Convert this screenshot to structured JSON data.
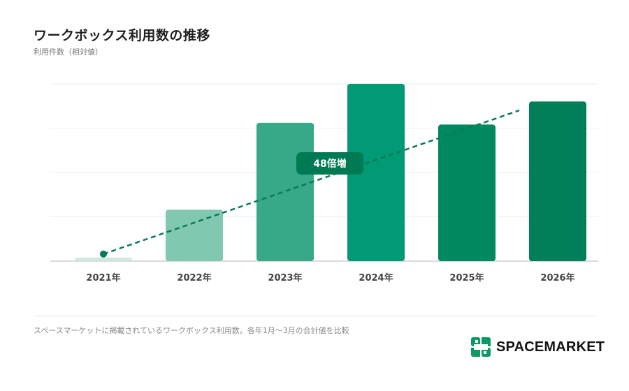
{
  "title": "ワークボックス利用数の推移",
  "subtitle": "利用件数（相対値）",
  "chart_data": {
    "type": "bar",
    "categories": [
      "2021年",
      "2022年",
      "2023年",
      "2024年",
      "2025年",
      "2026年"
    ],
    "values": [
      2,
      29,
      78,
      100,
      77,
      90
    ],
    "colors": [
      "#cfe9e0",
      "#80c8b0",
      "#37a989",
      "#009a74",
      "#00895f",
      "#007f58"
    ],
    "ylim": [
      0,
      100
    ],
    "grid": true,
    "trend_line": {
      "from_category": "2021年",
      "to_category": "2026年",
      "start_value": 4,
      "end_value": 85,
      "color": "#0a7a50",
      "style": "dashed"
    },
    "annotation": {
      "text": "48倍増"
    }
  },
  "footnote": "スペースマーケットに掲載されているワークボックス利用数。各年1月〜3月の合計値を比較",
  "logo": {
    "text": "SPACEMARKET",
    "color": "#0a9a62",
    "icon": "spacemarket-logo-icon"
  }
}
